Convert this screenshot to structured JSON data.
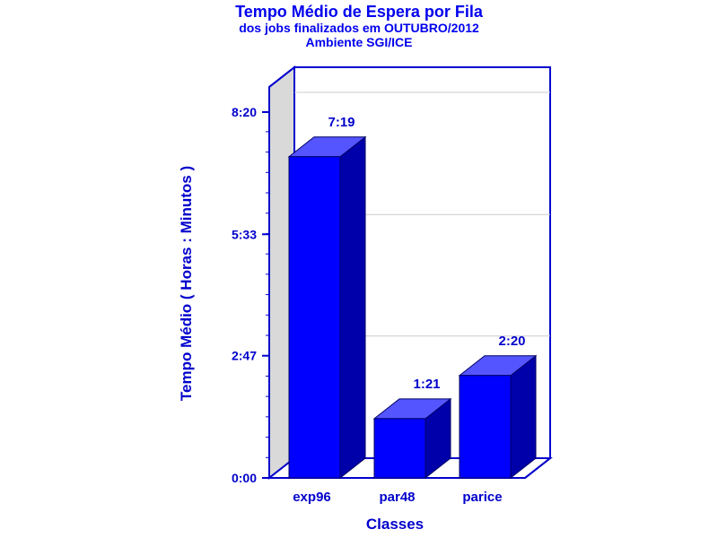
{
  "chart_data": {
    "type": "bar",
    "title": "Tempo Médio de Espera por Fila",
    "subtitle": [
      "dos jobs finalizados em OUTUBRO/2012",
      "Ambiente SGI/ICE"
    ],
    "xlabel": "Classes",
    "ylabel": "Tempo Médio ( Horas : Minutos )",
    "categories": [
      "exp96",
      "par48",
      "parice"
    ],
    "values": [
      439,
      81,
      140
    ],
    "value_labels": [
      "7:19",
      "1:21",
      "2:20"
    ],
    "y_unit": "minutes",
    "ylim": [
      0,
      500
    ],
    "y_ticks": [
      0,
      167,
      333,
      500
    ],
    "y_tick_labels": [
      "0:00",
      "2:47",
      "5:33",
      "8:20"
    ],
    "grid": true,
    "three_d": true,
    "colors": {
      "bar_front": "#0000ff",
      "bar_top": "#5555ff",
      "bar_side": "#0000aa",
      "frame": "#0000cc",
      "back_wall": "#d9d9d9"
    }
  }
}
